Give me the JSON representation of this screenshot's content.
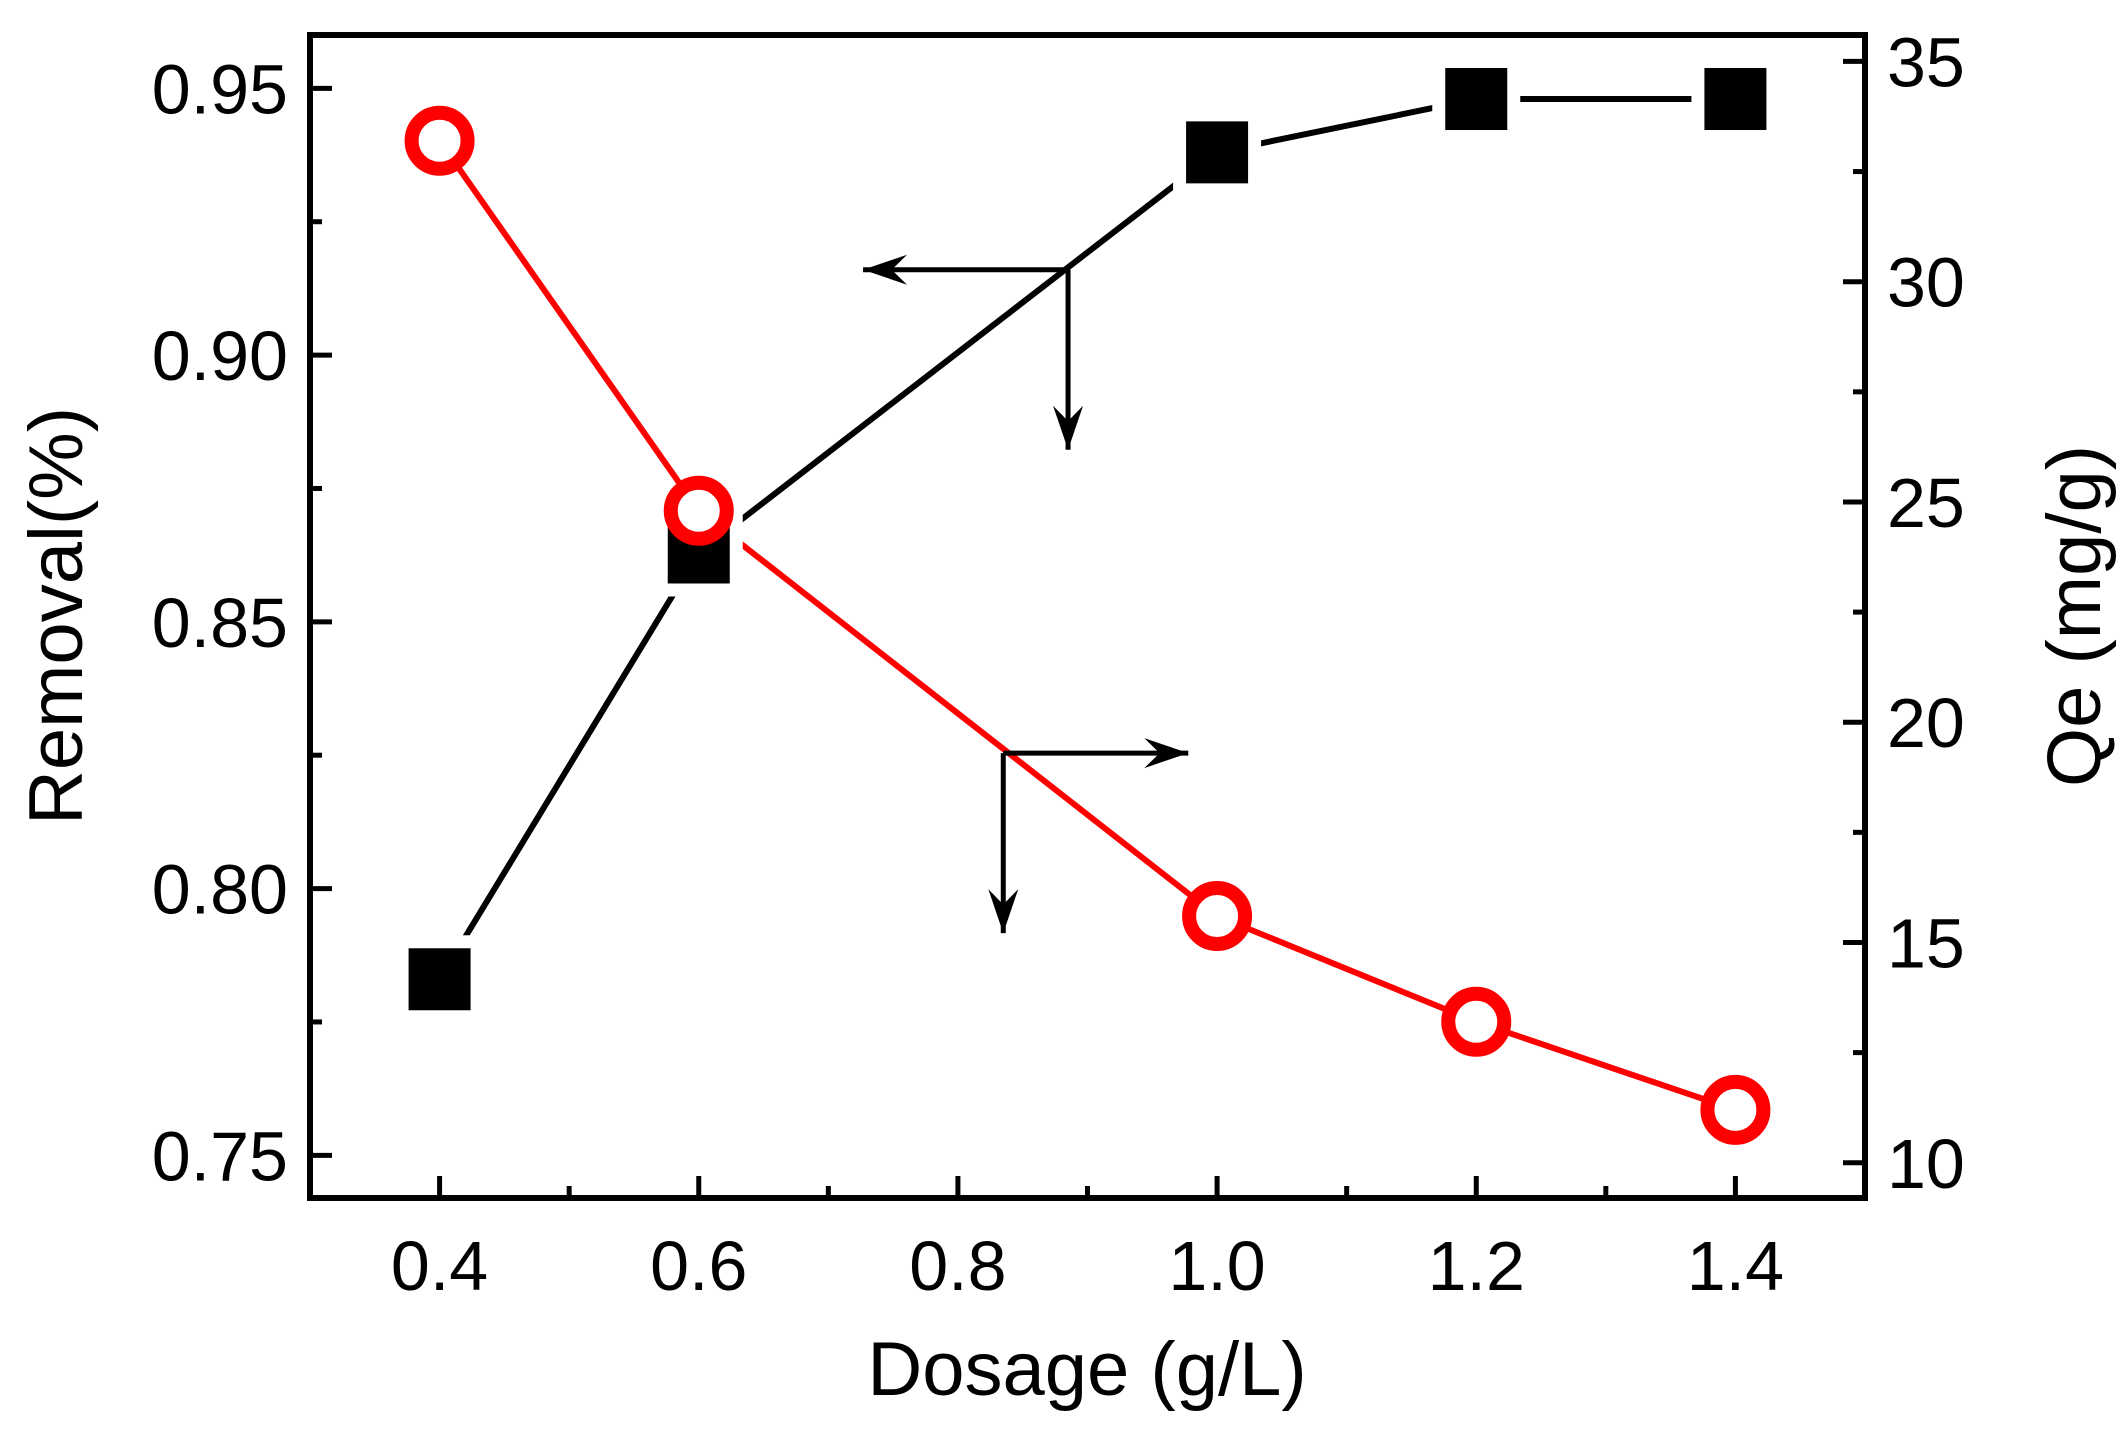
{
  "chart_data": {
    "type": "line",
    "xlabel": "Dosage (g/L)",
    "x": [
      0.4,
      0.6,
      1.0,
      1.2,
      1.4
    ],
    "xlim": [
      0.3,
      1.5
    ],
    "xticks": [
      "0.4",
      "0.6",
      "0.8",
      "1.0",
      "1.2",
      "1.4"
    ],
    "xtick_values": [
      0.4,
      0.6,
      0.8,
      1.0,
      1.2,
      1.4
    ],
    "y_left": {
      "label": "Removal(%)",
      "lim": [
        0.742,
        0.96
      ],
      "ticks": [
        "0.75",
        "0.80",
        "0.85",
        "0.90",
        "0.95"
      ],
      "tick_values": [
        0.75,
        0.8,
        0.85,
        0.9,
        0.95
      ]
    },
    "y_right": {
      "label": "Qe (mg/g)",
      "lim": [
        9.2,
        35.6
      ],
      "ticks": [
        "10",
        "15",
        "20",
        "25",
        "30",
        "35"
      ],
      "tick_values": [
        10,
        15,
        20,
        25,
        30,
        35
      ]
    },
    "series": [
      {
        "name": "Removal",
        "axis": "left",
        "marker": "square",
        "color": "#000000",
        "values": [
          0.783,
          0.863,
          0.938,
          0.948,
          0.948
        ]
      },
      {
        "name": "Qe",
        "axis": "right",
        "marker": "open-circle",
        "color": "#ff0000",
        "values": [
          33.2,
          24.8,
          15.6,
          13.2,
          11.2
        ]
      }
    ],
    "annotations": [
      {
        "name": "arrow-to-left-axis",
        "x": 0.885,
        "axis": "left",
        "y": 0.916,
        "points_to": "left"
      },
      {
        "name": "arrow-to-right-axis",
        "x": 0.835,
        "axis": "right",
        "y": 19.3,
        "points_to": "right"
      }
    ]
  }
}
